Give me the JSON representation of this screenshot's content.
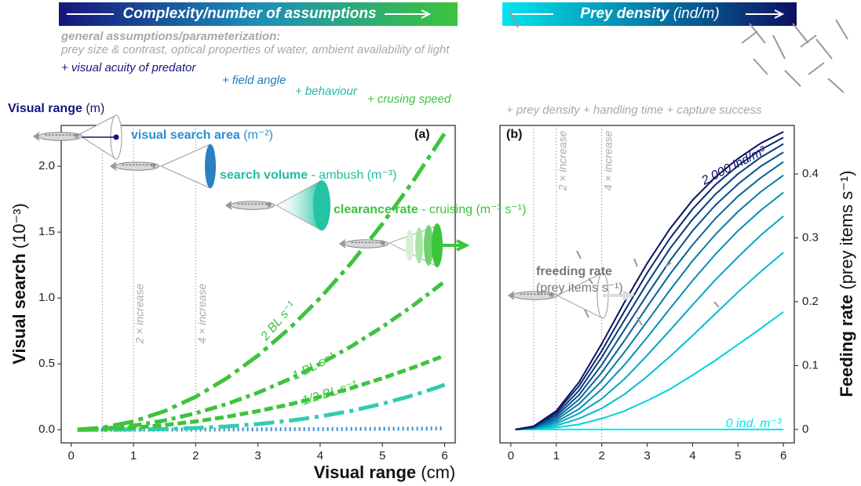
{
  "header": {
    "complexity": "Complexity/number of assumptions",
    "prey_density": "Prey density",
    "prey_density_unit": "(ind/m)",
    "general_title": "general assumptions/parameterization:",
    "general_list": "prey size & contrast, optical properties of water, ambient availability of light",
    "steps": [
      "+ visual acuity of predator",
      "+ field angle",
      "+ behaviour",
      "+ crusing speed"
    ],
    "feeding_steps": "+ prey density + handling time + capture success"
  },
  "concepts": [
    {
      "label": "Visual range",
      "unit": "(m)"
    },
    {
      "label": "visual search area",
      "unit": "(m⁻²)"
    },
    {
      "label": "search volume",
      "unit": "- ambush (m⁻³)"
    },
    {
      "label": "clearance rate",
      "unit": "- cruising (m⁻³ s⁻¹)"
    },
    {
      "label": "freeding rate",
      "unit": "(prey items s⁻¹)"
    }
  ],
  "chart_data": [
    {
      "type": "line",
      "panel_label": "(a)",
      "xlabel": "Visual range",
      "xlabel_unit": "(cm)",
      "ylabel": "Visual search",
      "ylabel_unit": "(10⁻³)",
      "y_axis_side": "left",
      "x": [
        0.1,
        0.5,
        1,
        1.5,
        2,
        2.5,
        3,
        3.5,
        4,
        4.5,
        5,
        5.5,
        6
      ],
      "xlim": [
        -0.16,
        6.17
      ],
      "ylim": [
        -0.1,
        2.31
      ],
      "xticks": [
        0,
        1,
        2,
        3,
        4,
        5,
        6
      ],
      "yticks": [
        {
          "value": 0,
          "label": "0.0"
        },
        0.5,
        {
          "value": 1,
          "label": "1.0"
        },
        1.5,
        {
          "value": 2,
          "label": "2.0"
        }
      ],
      "reference_lines": [
        {
          "x": 0.5
        },
        {
          "x": 1,
          "label": "2 × increase"
        },
        {
          "x": 2,
          "label": "4 × increase"
        }
      ],
      "series": [
        {
          "color": "#3a8fd0",
          "dash": "2 4",
          "values": [
            0,
            0,
            0,
            0.001,
            0.001,
            0.002,
            0.003,
            0.004,
            0.004,
            0.006,
            0.007,
            0.008,
            0.01
          ]
        },
        {
          "color": "#33cbb0",
          "dash": "26 7 5 7",
          "values": [
            0,
            0,
            0.002,
            0.005,
            0.013,
            0.025,
            0.043,
            0.068,
            0.101,
            0.143,
            0.197,
            0.262,
            0.34
          ]
        },
        {
          "name": "1/2 BL s⁻¹",
          "color": "#3cc43c",
          "dash": "11 5",
          "values": [
            0,
            0.004,
            0.016,
            0.035,
            0.063,
            0.098,
            0.141,
            0.191,
            0.25,
            0.316,
            0.391,
            0.473,
            0.563
          ]
        },
        {
          "name": "1 BL s⁻¹",
          "color": "#3cc43c",
          "dash": "16 6 5 6",
          "values": [
            0.001,
            0.008,
            0.031,
            0.07,
            0.125,
            0.195,
            0.281,
            0.383,
            0.5,
            0.633,
            0.781,
            0.945,
            1.125
          ]
        },
        {
          "name": "2 BL s⁻¹",
          "color": "#3cc43c",
          "dash": "26 7 6 7",
          "values": [
            0.001,
            0.016,
            0.063,
            0.141,
            0.25,
            0.391,
            0.563,
            0.766,
            1.0,
            1.266,
            1.563,
            1.891,
            2.25
          ]
        }
      ]
    },
    {
      "type": "line",
      "panel_label": "(b)",
      "ylabel": "Feeding rate",
      "ylabel_unit": "(prey items s⁻¹)",
      "y_axis_side": "right",
      "x": [
        0.1,
        0.5,
        1,
        1.5,
        2,
        2.5,
        3,
        3.5,
        4,
        4.5,
        5,
        5.5,
        6
      ],
      "xlim": [
        -0.24,
        6.24
      ],
      "ylim": [
        -0.021,
        0.476
      ],
      "xticks": [
        0,
        1,
        2,
        3,
        4,
        5,
        6
      ],
      "yticks": [
        0,
        0.1,
        0.2,
        0.3,
        0.4
      ],
      "reference_lines": [
        {
          "x": 0.5
        },
        {
          "x": 1,
          "label": "2 × increase"
        },
        {
          "x": 2,
          "label": "4 × increase"
        }
      ],
      "series": [
        {
          "name": "0 ind. m⁻³",
          "color": "#00e6ee",
          "values": [
            0,
            0,
            0,
            0,
            0,
            0,
            0,
            0,
            0,
            0,
            0,
            0,
            0
          ]
        },
        {
          "color": "#01d1e0",
          "values": [
            0,
            0.001,
            0.003,
            0.008,
            0.017,
            0.029,
            0.045,
            0.063,
            0.085,
            0.108,
            0.133,
            0.158,
            0.184
          ]
        },
        {
          "color": "#02bbd2",
          "values": [
            0,
            0.001,
            0.006,
            0.017,
            0.033,
            0.055,
            0.083,
            0.114,
            0.147,
            0.181,
            0.215,
            0.247,
            0.277
          ]
        },
        {
          "color": "#04a6c3",
          "values": [
            0,
            0.002,
            0.009,
            0.025,
            0.048,
            0.079,
            0.116,
            0.155,
            0.195,
            0.234,
            0.27,
            0.304,
            0.334
          ]
        },
        {
          "color": "#0590b5",
          "values": [
            0,
            0.002,
            0.012,
            0.032,
            0.063,
            0.101,
            0.144,
            0.189,
            0.233,
            0.274,
            0.311,
            0.343,
            0.371
          ]
        },
        {
          "color": "#067ba7",
          "values": [
            0,
            0.003,
            0.015,
            0.04,
            0.076,
            0.121,
            0.169,
            0.218,
            0.264,
            0.305,
            0.341,
            0.372,
            0.398
          ]
        },
        {
          "color": "#076699",
          "values": [
            0,
            0.003,
            0.018,
            0.047,
            0.089,
            0.139,
            0.192,
            0.243,
            0.289,
            0.33,
            0.365,
            0.394,
            0.419
          ]
        },
        {
          "color": "#08508b",
          "values": [
            0,
            0.004,
            0.021,
            0.054,
            0.101,
            0.156,
            0.211,
            0.264,
            0.311,
            0.351,
            0.384,
            0.412,
            0.434
          ]
        },
        {
          "color": "#0a3b7c",
          "values": [
            0,
            0.004,
            0.024,
            0.061,
            0.113,
            0.171,
            0.229,
            0.283,
            0.329,
            0.368,
            0.4,
            0.426,
            0.447
          ]
        },
        {
          "color": "#0b256e",
          "values": [
            0,
            0.005,
            0.027,
            0.068,
            0.123,
            0.185,
            0.245,
            0.299,
            0.345,
            0.383,
            0.413,
            0.438,
            0.457
          ]
        },
        {
          "name": "2,000 ind/m³",
          "color": "#0c1060",
          "values": [
            0,
            0.005,
            0.029,
            0.074,
            0.134,
            0.199,
            0.26,
            0.314,
            0.359,
            0.395,
            0.424,
            0.448,
            0.466
          ]
        }
      ]
    }
  ]
}
